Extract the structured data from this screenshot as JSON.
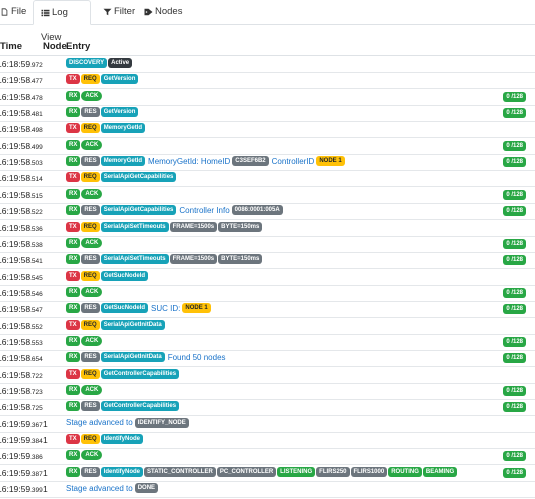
{
  "tabs": [
    {
      "label": "File",
      "icon": "file-icon",
      "active": false
    },
    {
      "label": "Log View",
      "icon": "list-icon",
      "active": true
    },
    {
      "label": "Filter",
      "icon": "filter-icon",
      "active": false
    },
    {
      "label": "Nodes",
      "icon": "tag-icon",
      "active": false
    }
  ],
  "header": {
    "time": "Time",
    "node": "Node",
    "entry": "Entry"
  },
  "rows": [
    {
      "time": "16:18:59",
      "ms": ".972",
      "node": "",
      "entry": [
        {
          "t": "DISCOVERY",
          "c": "b-info"
        },
        {
          "t": "Active",
          "c": "b-dark"
        }
      ],
      "count": ""
    },
    {
      "time": "16:19:58",
      "ms": ".477",
      "node": "",
      "entry": [
        {
          "t": "TX",
          "c": "b-tx"
        },
        {
          "t": "REQ",
          "c": "b-req"
        },
        {
          "t": "GetVersion",
          "c": "b-info"
        }
      ],
      "count": ""
    },
    {
      "time": "16:19:58",
      "ms": ".478",
      "node": "",
      "entry": [
        {
          "t": "RX",
          "c": "b-rx"
        },
        {
          "t": "ACK",
          "c": "b-ack pill"
        }
      ],
      "count": "0 /128"
    },
    {
      "time": "16:19:58",
      "ms": ".481",
      "node": "",
      "entry": [
        {
          "t": "RX",
          "c": "b-rx"
        },
        {
          "t": "RES",
          "c": "b-res"
        },
        {
          "t": "GetVersion",
          "c": "b-info"
        }
      ],
      "count": "0 /128"
    },
    {
      "time": "16:19:58",
      "ms": ".498",
      "node": "",
      "entry": [
        {
          "t": "TX",
          "c": "b-tx"
        },
        {
          "t": "REQ",
          "c": "b-req"
        },
        {
          "t": "MemoryGetId",
          "c": "b-info"
        }
      ],
      "count": ""
    },
    {
      "time": "16:19:58",
      "ms": ".499",
      "node": "",
      "entry": [
        {
          "t": "RX",
          "c": "b-rx"
        },
        {
          "t": "ACK",
          "c": "b-ack pill"
        }
      ],
      "count": "0 /128"
    },
    {
      "time": "16:19:58",
      "ms": ".503",
      "node": "",
      "entry": [
        {
          "t": "RX",
          "c": "b-rx"
        },
        {
          "t": "RES",
          "c": "b-res"
        },
        {
          "t": "MemoryGetId",
          "c": "b-info"
        },
        {
          "t": "MemoryGetId: HomeID",
          "c": "link"
        },
        {
          "t": "C3SEF6B2",
          "c": "b-sec"
        },
        {
          "t": "ControllerID",
          "c": "link"
        },
        {
          "t": "NODE 1",
          "c": "b-warn"
        }
      ],
      "count": "0 /128"
    },
    {
      "time": "16:19:58",
      "ms": ".514",
      "node": "",
      "entry": [
        {
          "t": "TX",
          "c": "b-tx"
        },
        {
          "t": "REQ",
          "c": "b-req"
        },
        {
          "t": "SerialApiGetCapabilities",
          "c": "b-info"
        }
      ],
      "count": ""
    },
    {
      "time": "16:19:58",
      "ms": ".515",
      "node": "",
      "entry": [
        {
          "t": "RX",
          "c": "b-rx"
        },
        {
          "t": "ACK",
          "c": "b-ack pill"
        }
      ],
      "count": "0 /128"
    },
    {
      "time": "16:19:58",
      "ms": ".522",
      "node": "",
      "entry": [
        {
          "t": "RX",
          "c": "b-rx"
        },
        {
          "t": "RES",
          "c": "b-res"
        },
        {
          "t": "SerialApiGetCapabilities",
          "c": "b-info"
        },
        {
          "t": "Controller Info",
          "c": "link"
        },
        {
          "t": "0086:0001:005A",
          "c": "b-sec"
        }
      ],
      "count": "0 /128"
    },
    {
      "time": "16:19:58",
      "ms": ".536",
      "node": "",
      "entry": [
        {
          "t": "TX",
          "c": "b-tx"
        },
        {
          "t": "REQ",
          "c": "b-req"
        },
        {
          "t": "SerialApiSetTimeouts",
          "c": "b-info"
        },
        {
          "t": "FRAME=1500s",
          "c": "b-sec"
        },
        {
          "t": "BYTE=150ms",
          "c": "b-sec"
        }
      ],
      "count": ""
    },
    {
      "time": "16:19:58",
      "ms": ".538",
      "node": "",
      "entry": [
        {
          "t": "RX",
          "c": "b-rx"
        },
        {
          "t": "ACK",
          "c": "b-ack pill"
        }
      ],
      "count": "0 /128"
    },
    {
      "time": "16:19:58",
      "ms": ".541",
      "node": "",
      "entry": [
        {
          "t": "RX",
          "c": "b-rx"
        },
        {
          "t": "RES",
          "c": "b-res"
        },
        {
          "t": "SerialApiSetTimeouts",
          "c": "b-info"
        },
        {
          "t": "FRAME=1500s",
          "c": "b-sec"
        },
        {
          "t": "BYTE=150ms",
          "c": "b-sec"
        }
      ],
      "count": "0 /128"
    },
    {
      "time": "16:19:58",
      "ms": ".545",
      "node": "",
      "entry": [
        {
          "t": "TX",
          "c": "b-tx"
        },
        {
          "t": "REQ",
          "c": "b-req"
        },
        {
          "t": "GetSucNodeId",
          "c": "b-info"
        }
      ],
      "count": ""
    },
    {
      "time": "16:19:58",
      "ms": ".546",
      "node": "",
      "entry": [
        {
          "t": "RX",
          "c": "b-rx"
        },
        {
          "t": "ACK",
          "c": "b-ack pill"
        }
      ],
      "count": "0 /128"
    },
    {
      "time": "16:19:58",
      "ms": ".547",
      "node": "",
      "entry": [
        {
          "t": "RX",
          "c": "b-rx"
        },
        {
          "t": "RES",
          "c": "b-res"
        },
        {
          "t": "GetSucNodeId",
          "c": "b-info"
        },
        {
          "t": "SUC ID:",
          "c": "link"
        },
        {
          "t": "NODE 1",
          "c": "b-warn"
        }
      ],
      "count": "0 /128"
    },
    {
      "time": "16:19:58",
      "ms": ".552",
      "node": "",
      "entry": [
        {
          "t": "TX",
          "c": "b-tx"
        },
        {
          "t": "REQ",
          "c": "b-req"
        },
        {
          "t": "SerialApiGetInitData",
          "c": "b-info"
        }
      ],
      "count": ""
    },
    {
      "time": "16:19:58",
      "ms": ".553",
      "node": "",
      "entry": [
        {
          "t": "RX",
          "c": "b-rx"
        },
        {
          "t": "ACK",
          "c": "b-ack pill"
        }
      ],
      "count": "0 /128"
    },
    {
      "time": "16:19:58",
      "ms": ".654",
      "node": "",
      "entry": [
        {
          "t": "RX",
          "c": "b-rx"
        },
        {
          "t": "RES",
          "c": "b-res"
        },
        {
          "t": "SerialApiGetInitData",
          "c": "b-info"
        },
        {
          "t": "Found 50 nodes",
          "c": "link"
        }
      ],
      "count": "0 /128"
    },
    {
      "time": "16:19:58",
      "ms": ".722",
      "node": "",
      "entry": [
        {
          "t": "TX",
          "c": "b-tx"
        },
        {
          "t": "REQ",
          "c": "b-req"
        },
        {
          "t": "GetControllerCapabilities",
          "c": "b-info"
        }
      ],
      "count": ""
    },
    {
      "time": "16:19:58",
      "ms": ".723",
      "node": "",
      "entry": [
        {
          "t": "RX",
          "c": "b-rx"
        },
        {
          "t": "ACK",
          "c": "b-ack pill"
        }
      ],
      "count": "0 /128"
    },
    {
      "time": "16:19:58",
      "ms": ".725",
      "node": "",
      "entry": [
        {
          "t": "RX",
          "c": "b-rx"
        },
        {
          "t": "RES",
          "c": "b-res"
        },
        {
          "t": "GetControllerCapabilities",
          "c": "b-info"
        }
      ],
      "count": "0 /128"
    },
    {
      "time": "16:19:59",
      "ms": ".367",
      "node": "1",
      "entry": [
        {
          "t": "Stage advanced to",
          "c": "plain"
        },
        {
          "t": "IDENTIFY_NODE",
          "c": "b-sec"
        }
      ],
      "count": ""
    },
    {
      "time": "16:19:59",
      "ms": ".384",
      "node": "1",
      "entry": [
        {
          "t": "TX",
          "c": "b-tx"
        },
        {
          "t": "REQ",
          "c": "b-req"
        },
        {
          "t": "IdentifyNode",
          "c": "b-info"
        }
      ],
      "count": ""
    },
    {
      "time": "16:19:59",
      "ms": ".386",
      "node": "",
      "entry": [
        {
          "t": "RX",
          "c": "b-rx"
        },
        {
          "t": "ACK",
          "c": "b-ack pill"
        }
      ],
      "count": "0 /128"
    },
    {
      "time": "16:19:59",
      "ms": ".387",
      "node": "1",
      "entry": [
        {
          "t": "RX",
          "c": "b-rx"
        },
        {
          "t": "RES",
          "c": "b-res"
        },
        {
          "t": "IdentifyNode",
          "c": "b-info"
        },
        {
          "t": "STATIC_CONTROLLER",
          "c": "b-sec"
        },
        {
          "t": "PC_CONTROLLER",
          "c": "b-sec"
        },
        {
          "t": "LISTENING",
          "c": "b-succ"
        },
        {
          "t": "FLIRS250",
          "c": "b-sec"
        },
        {
          "t": "FLIRS1000",
          "c": "b-sec"
        },
        {
          "t": "ROUTING",
          "c": "b-succ"
        },
        {
          "t": "BEAMING",
          "c": "b-succ"
        }
      ],
      "count": "0 /128"
    },
    {
      "time": "16:19:59",
      "ms": ".399",
      "node": "1",
      "entry": [
        {
          "t": "Stage advanced to",
          "c": "plain"
        },
        {
          "t": "DONE",
          "c": "b-sec"
        }
      ],
      "count": ""
    }
  ]
}
